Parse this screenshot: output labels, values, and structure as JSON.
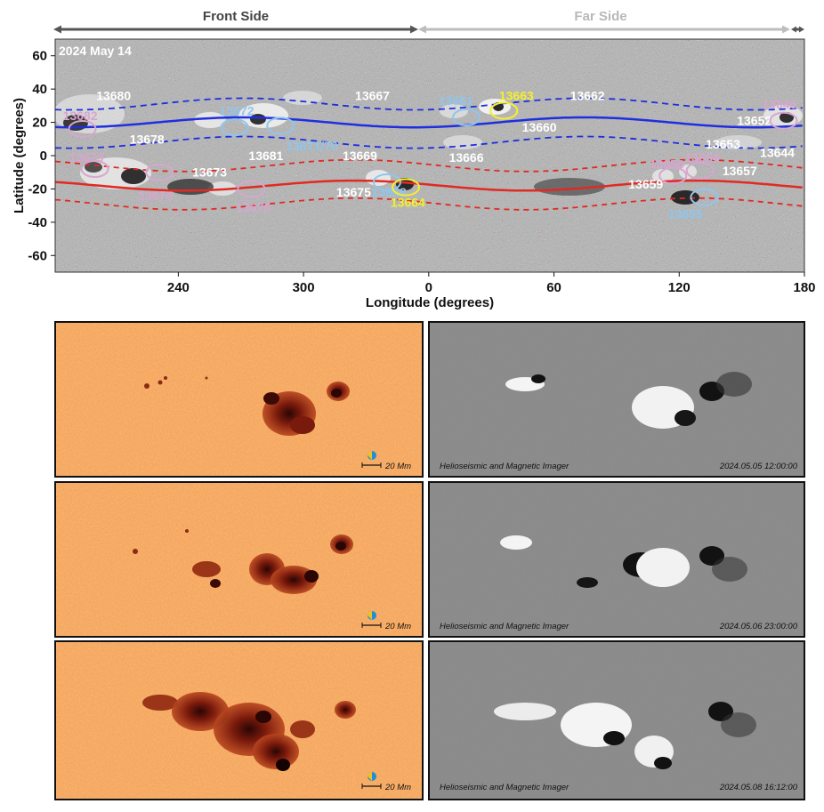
{
  "synoptic_map": {
    "header_left": "Front Side",
    "header_right": "Far Side",
    "date_label": "2024 May 14",
    "xlabel": "Longitude (degrees)",
    "ylabel": "Latitude (degrees)",
    "x_ticks": [
      "240",
      "300",
      "0",
      "60",
      "120",
      "180"
    ],
    "x_tick_longitudes": [
      240,
      300,
      360,
      420,
      480,
      540
    ],
    "x_range": [
      181,
      540
    ],
    "y_ticks": [
      60,
      40,
      20,
      0,
      -20,
      -40,
      -60
    ],
    "y_range": [
      -70,
      70
    ],
    "colors": {
      "white": "#ffffff",
      "blue": "#8fc6ee",
      "pink": "#d7a6cf",
      "yellow": "#f5ef2e",
      "nh_band": "#1f2fe0",
      "sh_band": "#e02a22"
    },
    "regions": [
      {
        "label": "13680",
        "color": "white",
        "lon": 209,
        "lat": 36,
        "ellipse": false
      },
      {
        "label": "13682",
        "color": "pink",
        "lon": 193,
        "lat": 24,
        "ellipse": true,
        "elon": 194,
        "elat": 16
      },
      {
        "label": "13678",
        "color": "white",
        "lon": 225,
        "lat": 10,
        "ellipse": false
      },
      {
        "label": "13679",
        "color": "pink",
        "lon": 196,
        "lat": -1,
        "ellipse": true,
        "elon": 200,
        "elat": -8
      },
      {
        "label": "13674",
        "color": "pink",
        "lon": 229,
        "lat": -24,
        "ellipse": true,
        "elon": 231,
        "elat": -10
      },
      {
        "label": "13673",
        "color": "white",
        "lon": 255,
        "lat": -10,
        "ellipse": false
      },
      {
        "label": "13672",
        "color": "blue",
        "lon": 268,
        "lat": 27,
        "ellipse": true,
        "elon": 267,
        "elat": 17
      },
      {
        "label": "13671/70",
        "color": "blue",
        "lon": 304,
        "lat": 6,
        "ellipse": true,
        "elon": 289,
        "elat": 18
      },
      {
        "label": "13667",
        "color": "white",
        "lon": 333,
        "lat": 36,
        "ellipse": false
      },
      {
        "label": "13681",
        "color": "white",
        "lon": 282,
        "lat": 0,
        "ellipse": false
      },
      {
        "label": "13676",
        "color": "pink",
        "lon": 276,
        "lat": -31,
        "ellipse": true,
        "elon": 275,
        "elat": -20
      },
      {
        "label": "13669",
        "color": "white",
        "lon": 327,
        "lat": 0,
        "ellipse": false
      },
      {
        "label": "13675",
        "color": "white",
        "lon": 324,
        "lat": -22,
        "ellipse": false
      },
      {
        "label": "13668",
        "color": "blue",
        "lon": 341,
        "lat": -22,
        "ellipse": true,
        "elon": 340,
        "elat": -16
      },
      {
        "label": "13664",
        "color": "yellow",
        "lon": 350,
        "lat": -28,
        "ellipse": true,
        "elon": 349,
        "elat": -19
      },
      {
        "label": "13661",
        "color": "blue",
        "lon": 373,
        "lat": 33,
        "ellipse": true,
        "elon": 378,
        "elat": 23
      },
      {
        "label": "13663",
        "color": "yellow",
        "lon": 402,
        "lat": 36,
        "ellipse": true,
        "elon": 396,
        "elat": 27
      },
      {
        "label": "13662",
        "color": "white",
        "lon": 436,
        "lat": 36,
        "ellipse": false
      },
      {
        "label": "13660",
        "color": "white",
        "lon": 413,
        "lat": 17,
        "ellipse": false
      },
      {
        "label": "13666",
        "color": "white",
        "lon": 378,
        "lat": -1,
        "ellipse": false
      },
      {
        "label": "13656",
        "color": "pink",
        "lon": 474,
        "lat": -5,
        "ellipse": true,
        "elon": 477,
        "elat": -12
      },
      {
        "label": "13654",
        "color": "pink",
        "lon": 491,
        "lat": -1,
        "ellipse": true,
        "elon": 490,
        "elat": -9
      },
      {
        "label": "13659",
        "color": "white",
        "lon": 464,
        "lat": -17,
        "ellipse": false
      },
      {
        "label": "13655",
        "color": "blue",
        "lon": 483,
        "lat": -35,
        "ellipse": true,
        "elon": 492,
        "elat": -25
      },
      {
        "label": "13657",
        "color": "white",
        "lon": 509,
        "lat": -9,
        "ellipse": false
      },
      {
        "label": "13653",
        "color": "white",
        "lon": 501,
        "lat": 7,
        "ellipse": false
      },
      {
        "label": "13652",
        "color": "white",
        "lon": 516,
        "lat": 21,
        "ellipse": false
      },
      {
        "label": "13646",
        "color": "pink",
        "lon": 528,
        "lat": 31,
        "ellipse": true,
        "elon": 530,
        "elat": 21
      },
      {
        "label": "13644",
        "color": "white",
        "lon": 527,
        "lat": 2,
        "ellipse": false
      }
    ]
  },
  "panels": [
    {
      "instrument": "Helioseismic and Magnetic Imager",
      "timestamp": "2024.05.05 12:00:00",
      "scale_label": "20 Mm"
    },
    {
      "instrument": "Helioseismic and Magnetic Imager",
      "timestamp": "2024.05.06 23:00:00",
      "scale_label": "20 Mm"
    },
    {
      "instrument": "Helioseismic and Magnetic Imager",
      "timestamp": "2024.05.08 16:12:00",
      "scale_label": "20 Mm"
    }
  ]
}
